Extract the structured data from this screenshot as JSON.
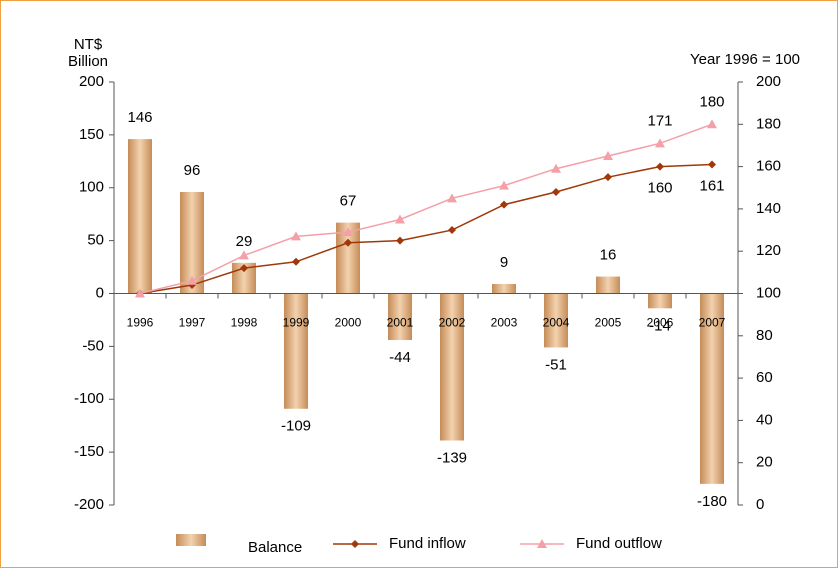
{
  "chart_data": {
    "type": "bar_line",
    "ylabel": [
      "NT$",
      "Billion"
    ],
    "y2label": "Year 1996 = 100",
    "categories": [
      "1996",
      "1997",
      "1998",
      "1999",
      "2000",
      "2001",
      "2002",
      "2003",
      "2004",
      "2005",
      "2006",
      "2007"
    ],
    "series": [
      {
        "name": "Balance",
        "type": "bar",
        "color": "#d8a878",
        "values": [
          146,
          96,
          29,
          -109,
          67,
          -44,
          -139,
          9,
          -51,
          16,
          -14,
          -180
        ]
      },
      {
        "name": "Fund inflow",
        "type": "line",
        "axis": "y2",
        "marker": "diamond",
        "color": "#a0380a",
        "values": [
          100,
          104,
          112,
          115,
          124,
          125,
          130,
          142,
          148,
          155,
          160,
          161
        ]
      },
      {
        "name": "Fund outflow",
        "type": "line",
        "axis": "y2",
        "marker": "triangle",
        "color": "#f4a0a8",
        "values": [
          100,
          106,
          118,
          127,
          129,
          135,
          145,
          151,
          159,
          165,
          171,
          180
        ]
      }
    ],
    "ylim": [
      -200,
      200
    ],
    "yticks": [
      -200,
      -150,
      -100,
      -50,
      0,
      50,
      100,
      150,
      200
    ],
    "y2lim": [
      0,
      200
    ],
    "y2ticks": [
      0,
      20,
      40,
      60,
      80,
      100,
      120,
      140,
      160,
      180,
      200
    ],
    "legend": "bottom"
  }
}
